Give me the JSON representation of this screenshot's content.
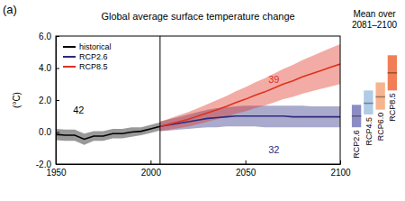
{
  "chart_data": {
    "type": "line",
    "panel_label": "(a)",
    "title": "Global average surface temperature change",
    "y_label": "(°C)",
    "xlim": [
      1950,
      2100
    ],
    "xticks": [
      1950,
      2000,
      2050,
      2100
    ],
    "ylim": [
      -2,
      6
    ],
    "yticks": [
      {
        "value": -2,
        "label": "-2.0"
      },
      {
        "value": 0,
        "label": "0.0"
      },
      {
        "value": 2,
        "label": "2.0"
      },
      {
        "value": 4,
        "label": "4.0"
      },
      {
        "value": 6,
        "label": "6.0"
      }
    ],
    "legend": "upper left",
    "divider_x": 2005,
    "series": [
      {
        "name": "historical",
        "color": "#000000",
        "x": [
          1950,
          1955,
          1960,
          1965,
          1970,
          1975,
          1980,
          1985,
          1990,
          1995,
          2000,
          2005
        ],
        "values": [
          -0.15,
          -0.2,
          -0.2,
          -0.45,
          -0.25,
          -0.25,
          -0.1,
          -0.1,
          0.0,
          0.05,
          0.2,
          0.35
        ],
        "lower": [
          -0.5,
          -0.55,
          -0.55,
          -0.8,
          -0.55,
          -0.55,
          -0.4,
          -0.4,
          -0.3,
          -0.2,
          -0.05,
          0.1
        ],
        "upper": [
          0.2,
          0.15,
          0.15,
          -0.1,
          0.05,
          0.05,
          0.2,
          0.2,
          0.3,
          0.3,
          0.45,
          0.6
        ]
      },
      {
        "name": "RCP2.6",
        "color": "#2b2b80",
        "x": [
          2005,
          2010,
          2015,
          2020,
          2025,
          2030,
          2035,
          2040,
          2045,
          2050,
          2055,
          2060,
          2065,
          2070,
          2075,
          2080,
          2085,
          2090,
          2095,
          2100
        ],
        "values": [
          0.35,
          0.45,
          0.55,
          0.65,
          0.75,
          0.85,
          0.9,
          0.95,
          1.0,
          1.0,
          1.0,
          1.0,
          1.0,
          1.0,
          0.95,
          0.95,
          0.95,
          0.95,
          0.95,
          0.95
        ],
        "lower": [
          0.05,
          0.1,
          0.15,
          0.2,
          0.25,
          0.3,
          0.3,
          0.35,
          0.35,
          0.35,
          0.35,
          0.3,
          0.3,
          0.3,
          0.3,
          0.3,
          0.3,
          0.3,
          0.3,
          0.3
        ],
        "upper": [
          0.65,
          0.8,
          0.95,
          1.1,
          1.25,
          1.4,
          1.5,
          1.55,
          1.6,
          1.65,
          1.65,
          1.65,
          1.65,
          1.65,
          1.65,
          1.65,
          1.6,
          1.6,
          1.6,
          1.6
        ]
      },
      {
        "name": "RCP8.5",
        "color": "#e0301e",
        "x": [
          2005,
          2010,
          2015,
          2020,
          2025,
          2030,
          2035,
          2040,
          2045,
          2050,
          2055,
          2060,
          2065,
          2070,
          2075,
          2080,
          2085,
          2090,
          2095,
          2100
        ],
        "values": [
          0.35,
          0.5,
          0.65,
          0.8,
          1.0,
          1.2,
          1.4,
          1.6,
          1.85,
          2.05,
          2.3,
          2.5,
          2.75,
          3.0,
          3.2,
          3.45,
          3.65,
          3.85,
          4.05,
          4.25
        ],
        "lower": [
          0.05,
          0.15,
          0.25,
          0.35,
          0.5,
          0.65,
          0.8,
          0.95,
          1.15,
          1.3,
          1.5,
          1.65,
          1.85,
          2.05,
          2.2,
          2.4,
          2.55,
          2.7,
          2.85,
          3.0
        ],
        "upper": [
          0.65,
          0.85,
          1.05,
          1.25,
          1.5,
          1.75,
          2.0,
          2.25,
          2.55,
          2.8,
          3.1,
          3.35,
          3.65,
          3.95,
          4.2,
          4.5,
          4.75,
          5.0,
          5.25,
          5.5
        ]
      }
    ],
    "annotations": [
      {
        "text": "42",
        "x": 1962,
        "y": 1.4,
        "color": "#000000"
      },
      {
        "text": "39",
        "x": 2065,
        "y": 3.3,
        "color": "#e0301e"
      },
      {
        "text": "32",
        "x": 2065,
        "y": -1.1,
        "color": "#2b2b80"
      }
    ],
    "range_bars": {
      "title": "Mean over 2081–2100",
      "categories": [
        "RCP2.6",
        "RCP4.5",
        "RCP6.0",
        "RCP8.5"
      ],
      "means": [
        1.0,
        1.8,
        2.2,
        3.7
      ],
      "lows": [
        0.3,
        1.1,
        1.4,
        2.6
      ],
      "highs": [
        1.7,
        2.6,
        3.1,
        4.8
      ],
      "colors": [
        "#8c8cc4",
        "#b0cbe6",
        "#f6b48e",
        "#f27e56"
      ]
    }
  }
}
